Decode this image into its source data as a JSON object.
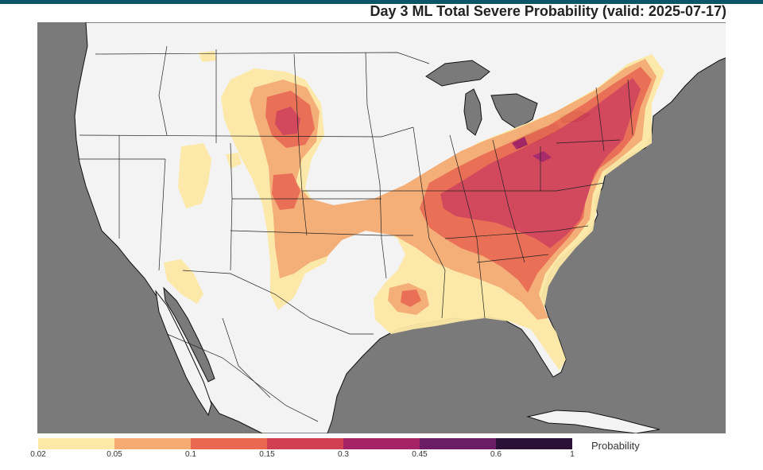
{
  "header": {
    "title": "Day 3 ML Total Severe Probability (valid: 2025-07-17)",
    "accent_color": "#0b5566"
  },
  "map": {
    "land_color": "#f3f3f3",
    "water_color": "#7a7a7a",
    "border_color": "#111111"
  },
  "legend": {
    "label": "Probability",
    "tick_labels": [
      "0.02",
      "0.05",
      "0.1",
      "0.15",
      "0.3",
      "0.45",
      "0.6",
      "1"
    ],
    "colors": [
      "#fde9a6",
      "#f5ab72",
      "#e9684f",
      "#d13f55",
      "#a42265",
      "#6b1d63",
      "#2b1136"
    ]
  }
}
